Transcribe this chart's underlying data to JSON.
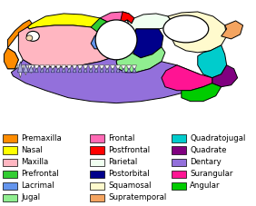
{
  "legend_items": [
    {
      "label": "Premaxilla",
      "color": "#FF8C00"
    },
    {
      "label": "Nasal",
      "color": "#FFFF00"
    },
    {
      "label": "Maxilla",
      "color": "#FFB6C1"
    },
    {
      "label": "Prefrontal",
      "color": "#32CD32"
    },
    {
      "label": "Lacrimal",
      "color": "#6495ED"
    },
    {
      "label": "Jugal",
      "color": "#90EE90"
    },
    {
      "label": "Frontal",
      "color": "#FF69B4"
    },
    {
      "label": "Postfrontal",
      "color": "#FF0000"
    },
    {
      "label": "Parietal",
      "color": "#F0FFF0"
    },
    {
      "label": "Postorbital",
      "color": "#00008B"
    },
    {
      "label": "Squamosal",
      "color": "#FFFACD"
    },
    {
      "label": "Supratemporal",
      "color": "#F4A460"
    },
    {
      "label": "Quadratojugal",
      "color": "#00CCCC"
    },
    {
      "label": "Quadrate",
      "color": "#800080"
    },
    {
      "label": "Dentary",
      "color": "#9370DB"
    },
    {
      "label": "Surangular",
      "color": "#FF1493"
    },
    {
      "label": "Angular",
      "color": "#00CC00"
    }
  ],
  "background_color": "#FFFFFF",
  "fig_width": 2.82,
  "fig_height": 2.27,
  "dpi": 100
}
